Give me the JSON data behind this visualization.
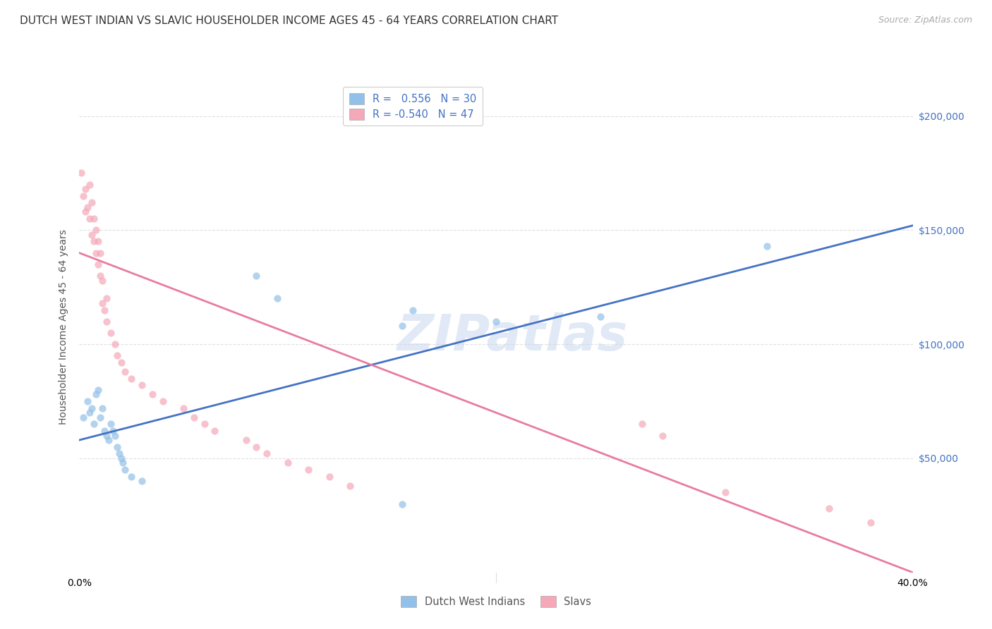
{
  "title": "DUTCH WEST INDIAN VS SLAVIC HOUSEHOLDER INCOME AGES 45 - 64 YEARS CORRELATION CHART",
  "source": "Source: ZipAtlas.com",
  "ylabel": "Householder Income Ages 45 - 64 years",
  "ytick_labels": [
    "$50,000",
    "$100,000",
    "$150,000",
    "$200,000"
  ],
  "ytick_values": [
    50000,
    100000,
    150000,
    200000
  ],
  "ylim": [
    0,
    215000
  ],
  "xlim": [
    0.0,
    0.4
  ],
  "watermark": "ZIPatlas",
  "legend_entry1": "R =   0.556   N = 30",
  "legend_entry2": "R = -0.540   N = 47",
  "blue_color": "#92c0e8",
  "pink_color": "#f4a8b8",
  "blue_line_color": "#4472c4",
  "pink_line_color": "#e87ca0",
  "legend_label1": "Dutch West Indians",
  "legend_label2": "Slavs",
  "blue_scatter_x": [
    0.002,
    0.004,
    0.005,
    0.006,
    0.007,
    0.008,
    0.009,
    0.01,
    0.011,
    0.012,
    0.013,
    0.014,
    0.015,
    0.016,
    0.017,
    0.018,
    0.019,
    0.02,
    0.021,
    0.022,
    0.025,
    0.03,
    0.085,
    0.095,
    0.155,
    0.16,
    0.2,
    0.25,
    0.33,
    0.155
  ],
  "blue_scatter_y": [
    68000,
    75000,
    70000,
    72000,
    65000,
    78000,
    80000,
    68000,
    72000,
    62000,
    60000,
    58000,
    65000,
    62000,
    60000,
    55000,
    52000,
    50000,
    48000,
    45000,
    42000,
    40000,
    130000,
    120000,
    108000,
    115000,
    110000,
    112000,
    143000,
    30000
  ],
  "pink_scatter_x": [
    0.001,
    0.002,
    0.003,
    0.003,
    0.004,
    0.005,
    0.005,
    0.006,
    0.006,
    0.007,
    0.007,
    0.008,
    0.008,
    0.009,
    0.009,
    0.01,
    0.01,
    0.011,
    0.011,
    0.012,
    0.013,
    0.013,
    0.015,
    0.017,
    0.018,
    0.02,
    0.022,
    0.025,
    0.03,
    0.035,
    0.04,
    0.05,
    0.055,
    0.06,
    0.065,
    0.08,
    0.085,
    0.09,
    0.1,
    0.11,
    0.12,
    0.13,
    0.27,
    0.28,
    0.31,
    0.36,
    0.38
  ],
  "pink_scatter_y": [
    175000,
    165000,
    168000,
    158000,
    160000,
    170000,
    155000,
    162000,
    148000,
    155000,
    145000,
    150000,
    140000,
    145000,
    135000,
    140000,
    130000,
    128000,
    118000,
    115000,
    120000,
    110000,
    105000,
    100000,
    95000,
    92000,
    88000,
    85000,
    82000,
    78000,
    75000,
    72000,
    68000,
    65000,
    62000,
    58000,
    55000,
    52000,
    48000,
    45000,
    42000,
    38000,
    65000,
    60000,
    35000,
    28000,
    22000
  ],
  "blue_trend_x": [
    0.0,
    0.4
  ],
  "blue_trend_y": [
    58000,
    152000
  ],
  "pink_trend_x": [
    0.0,
    0.4
  ],
  "pink_trend_y": [
    140000,
    0
  ],
  "title_fontsize": 11,
  "source_fontsize": 9,
  "axis_label_fontsize": 10,
  "tick_fontsize": 10,
  "legend_fontsize": 10.5,
  "watermark_fontsize": 52,
  "scatter_size": 55,
  "scatter_alpha": 0.7,
  "background_color": "#ffffff",
  "grid_color": "#e0e0e0"
}
